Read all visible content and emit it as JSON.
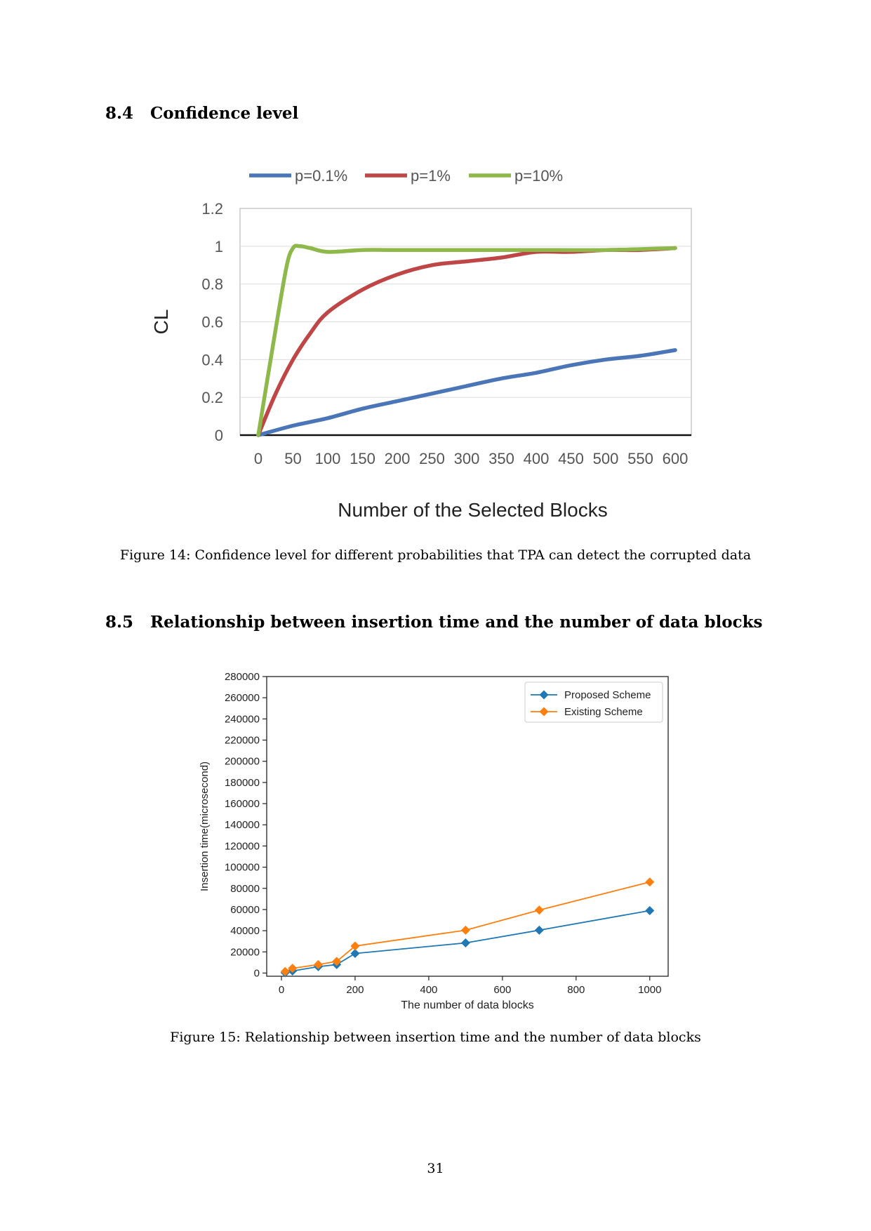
{
  "section_84": {
    "number": "8.4",
    "title": "Confidence level"
  },
  "figure14": {
    "caption": "Figure 14: Confidence level for different probabilities that TPA can detect the corrupted data"
  },
  "section_85": {
    "number": "8.5",
    "title": "Relationship between insertion time and the number of data blocks"
  },
  "figure15": {
    "caption": "Figure 15: Relationship between insertion time and the number of data blocks"
  },
  "page_number": "31",
  "chart_data": [
    {
      "type": "line",
      "ylabel": "CL",
      "xlabel": "Number of the Selected Blocks",
      "xlim": [
        0,
        600
      ],
      "ylim": [
        0,
        1.2
      ],
      "xticks": [
        0,
        50,
        100,
        150,
        200,
        250,
        300,
        350,
        400,
        450,
        500,
        550,
        600
      ],
      "yticks": [
        "0",
        "0.2",
        "0.4",
        "0.6",
        "0.8",
        "1",
        "1.2"
      ],
      "grid": "horizontal",
      "legend": "top",
      "series": [
        {
          "name": "p=0.1%",
          "color": "#4a76b8",
          "x": [
            0,
            50,
            100,
            150,
            200,
            250,
            300,
            350,
            400,
            450,
            500,
            550,
            600
          ],
          "y": [
            0,
            0.05,
            0.09,
            0.14,
            0.18,
            0.22,
            0.26,
            0.3,
            0.33,
            0.37,
            0.4,
            0.42,
            0.45
          ]
        },
        {
          "name": "p=1%",
          "color": "#bf4646",
          "x": [
            0,
            25,
            50,
            75,
            100,
            150,
            200,
            250,
            300,
            350,
            400,
            450,
            500,
            550,
            600
          ],
          "y": [
            0,
            0.22,
            0.4,
            0.54,
            0.65,
            0.77,
            0.85,
            0.9,
            0.92,
            0.94,
            0.97,
            0.97,
            0.98,
            0.98,
            0.99
          ]
        },
        {
          "name": "p=10%",
          "color": "#8fb84a",
          "x": [
            0,
            20,
            40,
            50,
            60,
            75,
            100,
            150,
            200,
            300,
            400,
            500,
            600
          ],
          "y": [
            0,
            0.45,
            0.88,
            0.99,
            1.0,
            0.99,
            0.97,
            0.98,
            0.98,
            0.98,
            0.98,
            0.98,
            0.99
          ]
        }
      ]
    },
    {
      "type": "line",
      "xlabel": "The number of data blocks",
      "ylabel": "Insertion time(microsecond)",
      "xlim": [
        -40,
        1050
      ],
      "ylim": [
        -3000,
        280000
      ],
      "xticks": [
        0,
        200,
        400,
        600,
        800,
        1000
      ],
      "yticks": [
        0,
        20000,
        40000,
        60000,
        80000,
        100000,
        120000,
        140000,
        160000,
        180000,
        200000,
        220000,
        240000,
        260000,
        280000
      ],
      "legend": "top-right",
      "series": [
        {
          "name": "Proposed Scheme",
          "color": "#1f77b4",
          "marker": "diamond",
          "x": [
            10,
            30,
            100,
            150,
            200,
            500,
            700,
            1000
          ],
          "y": [
            300,
            2000,
            6000,
            8000,
            18500,
            28500,
            40500,
            59000
          ]
        },
        {
          "name": "Existing Scheme",
          "color": "#ff7f0e",
          "marker": "diamond",
          "x": [
            10,
            30,
            100,
            150,
            200,
            500,
            700,
            1000
          ],
          "y": [
            1500,
            4500,
            8000,
            11000,
            25500,
            40500,
            59500,
            86000
          ]
        }
      ]
    }
  ]
}
